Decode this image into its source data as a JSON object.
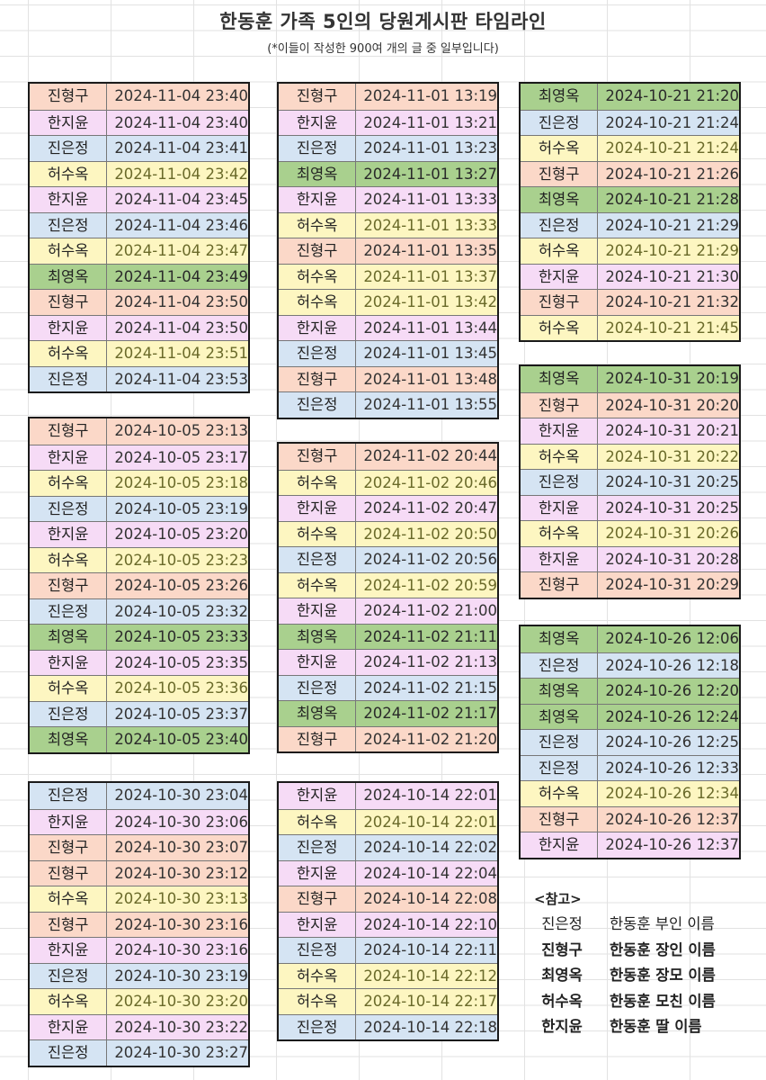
{
  "title": "한동훈 가족 5인의 당원게시판 타임라인",
  "subtitle": "(*이들이 작성한 900여 개의 글 중 일부입니다)",
  "colors": {
    "진형구": {
      "bg": "#fbd8c8",
      "fg": "#333333"
    },
    "한지윤": {
      "bg": "#f6dbf6",
      "fg": "#333333"
    },
    "진은정": {
      "bg": "#d5e4f3",
      "fg": "#333333"
    },
    "허수옥": {
      "bg": "#fdf6c1",
      "fg": "#6a6a2a"
    },
    "최영옥": {
      "bg": "#a9d08e",
      "fg": "#2a2a2a"
    }
  },
  "blocks": [
    {
      "rows": [
        [
          "진형구",
          "2024-11-04 23:40"
        ],
        [
          "한지윤",
          "2024-11-04 23:40"
        ],
        [
          "진은정",
          "2024-11-04 23:41"
        ],
        [
          "허수옥",
          "2024-11-04 23:42"
        ],
        [
          "한지윤",
          "2024-11-04 23:45"
        ],
        [
          "진은정",
          "2024-11-04 23:46"
        ],
        [
          "허수옥",
          "2024-11-04 23:47"
        ],
        [
          "최영옥",
          "2024-11-04 23:49"
        ],
        [
          "진형구",
          "2024-11-04 23:50"
        ],
        [
          "한지윤",
          "2024-11-04 23:50"
        ],
        [
          "허수옥",
          "2024-11-04 23:51"
        ],
        [
          "진은정",
          "2024-11-04 23:53"
        ]
      ]
    },
    {
      "rows": [
        [
          "진형구",
          "2024-10-05 23:13"
        ],
        [
          "한지윤",
          "2024-10-05 23:17"
        ],
        [
          "허수옥",
          "2024-10-05 23:18"
        ],
        [
          "진은정",
          "2024-10-05 23:19"
        ],
        [
          "한지윤",
          "2024-10-05 23:20"
        ],
        [
          "허수옥",
          "2024-10-05 23:23"
        ],
        [
          "진형구",
          "2024-10-05 23:26"
        ],
        [
          "진은정",
          "2024-10-05 23:32"
        ],
        [
          "최영옥",
          "2024-10-05 23:33"
        ],
        [
          "한지윤",
          "2024-10-05 23:35"
        ],
        [
          "허수옥",
          "2024-10-05 23:36"
        ],
        [
          "진은정",
          "2024-10-05 23:37"
        ],
        [
          "최영옥",
          "2024-10-05 23:40"
        ]
      ]
    },
    {
      "rows": [
        [
          "진은정",
          "2024-10-30 23:04"
        ],
        [
          "한지윤",
          "2024-10-30 23:06"
        ],
        [
          "진형구",
          "2024-10-30 23:07"
        ],
        [
          "진형구",
          "2024-10-30 23:12"
        ],
        [
          "허수옥",
          "2024-10-30 23:13"
        ],
        [
          "진형구",
          "2024-10-30 23:16"
        ],
        [
          "한지윤",
          "2024-10-30 23:16"
        ],
        [
          "진은정",
          "2024-10-30 23:19"
        ],
        [
          "허수옥",
          "2024-10-30 23:20"
        ],
        [
          "한지윤",
          "2024-10-30 23:22"
        ],
        [
          "진은정",
          "2024-10-30 23:27"
        ]
      ]
    },
    {
      "rows": [
        [
          "진형구",
          "2024-11-01 13:19"
        ],
        [
          "한지윤",
          "2024-11-01 13:21"
        ],
        [
          "진은정",
          "2024-11-01 13:23"
        ],
        [
          "최영옥",
          "2024-11-01 13:27"
        ],
        [
          "한지윤",
          "2024-11-01 13:33"
        ],
        [
          "허수옥",
          "2024-11-01 13:33"
        ],
        [
          "진형구",
          "2024-11-01 13:35"
        ],
        [
          "허수옥",
          "2024-11-01 13:37"
        ],
        [
          "허수옥",
          "2024-11-01 13:42"
        ],
        [
          "한지윤",
          "2024-11-01 13:44"
        ],
        [
          "진은정",
          "2024-11-01 13:45"
        ],
        [
          "진형구",
          "2024-11-01 13:48"
        ],
        [
          "진은정",
          "2024-11-01 13:55"
        ]
      ]
    },
    {
      "rows": [
        [
          "진형구",
          "2024-11-02 20:44"
        ],
        [
          "허수옥",
          "2024-11-02 20:46"
        ],
        [
          "한지윤",
          "2024-11-02 20:47"
        ],
        [
          "허수옥",
          "2024-11-02 20:50"
        ],
        [
          "진은정",
          "2024-11-02 20:56"
        ],
        [
          "허수옥",
          "2024-11-02 20:59"
        ],
        [
          "한지윤",
          "2024-11-02 21:00"
        ],
        [
          "최영옥",
          "2024-11-02 21:11"
        ],
        [
          "한지윤",
          "2024-11-02 21:13"
        ],
        [
          "진은정",
          "2024-11-02 21:15"
        ],
        [
          "최영옥",
          "2024-11-02 21:17"
        ],
        [
          "진형구",
          "2024-11-02 21:20"
        ]
      ]
    },
    {
      "rows": [
        [
          "한지윤",
          "2024-10-14 22:01"
        ],
        [
          "허수옥",
          "2024-10-14 22:01"
        ],
        [
          "진은정",
          "2024-10-14 22:02"
        ],
        [
          "한지윤",
          "2024-10-14 22:04"
        ],
        [
          "진형구",
          "2024-10-14 22:08"
        ],
        [
          "한지윤",
          "2024-10-14 22:10"
        ],
        [
          "진은정",
          "2024-10-14 22:11"
        ],
        [
          "허수옥",
          "2024-10-14 22:12"
        ],
        [
          "허수옥",
          "2024-10-14 22:17"
        ],
        [
          "진은정",
          "2024-10-14 22:18"
        ]
      ]
    },
    {
      "rows": [
        [
          "최영옥",
          "2024-10-21 21:20"
        ],
        [
          "진은정",
          "2024-10-21 21:24"
        ],
        [
          "허수옥",
          "2024-10-21 21:24"
        ],
        [
          "진형구",
          "2024-10-21 21:26"
        ],
        [
          "최영옥",
          "2024-10-21 21:28"
        ],
        [
          "진은정",
          "2024-10-21 21:29"
        ],
        [
          "허수옥",
          "2024-10-21 21:29"
        ],
        [
          "한지윤",
          "2024-10-21 21:30"
        ],
        [
          "진형구",
          "2024-10-21 21:32"
        ],
        [
          "허수옥",
          "2024-10-21 21:45"
        ]
      ]
    },
    {
      "rows": [
        [
          "최영옥",
          "2024-10-31 20:19"
        ],
        [
          "진형구",
          "2024-10-31 20:20"
        ],
        [
          "한지윤",
          "2024-10-31 20:21"
        ],
        [
          "허수옥",
          "2024-10-31 20:22"
        ],
        [
          "진은정",
          "2024-10-31 20:25"
        ],
        [
          "한지윤",
          "2024-10-31 20:25"
        ],
        [
          "허수옥",
          "2024-10-31 20:26"
        ],
        [
          "한지윤",
          "2024-10-31 20:28"
        ],
        [
          "진형구",
          "2024-10-31 20:29"
        ]
      ]
    },
    {
      "rows": [
        [
          "최영옥",
          "2024-10-26 12:06"
        ],
        [
          "진은정",
          "2024-10-26 12:18"
        ],
        [
          "최영옥",
          "2024-10-26 12:20"
        ],
        [
          "최영옥",
          "2024-10-26 12:24"
        ],
        [
          "진은정",
          "2024-10-26 12:25"
        ],
        [
          "진은정",
          "2024-10-26 12:33"
        ],
        [
          "허수옥",
          "2024-10-26 12:34"
        ],
        [
          "진형구",
          "2024-10-26 12:37"
        ],
        [
          "한지윤",
          "2024-10-26 12:37"
        ]
      ]
    }
  ],
  "reference": {
    "title": "<참고>",
    "items": [
      {
        "name": "진은정",
        "desc": "한동훈 부인 이름"
      },
      {
        "name": "진형구",
        "desc": "한동훈 장인 이름"
      },
      {
        "name": "최영옥",
        "desc": "한동훈 장모 이름"
      },
      {
        "name": "허수옥",
        "desc": "한동훈 모친 이름"
      },
      {
        "name": "한지윤",
        "desc": "한동훈 딸 이름"
      }
    ]
  }
}
